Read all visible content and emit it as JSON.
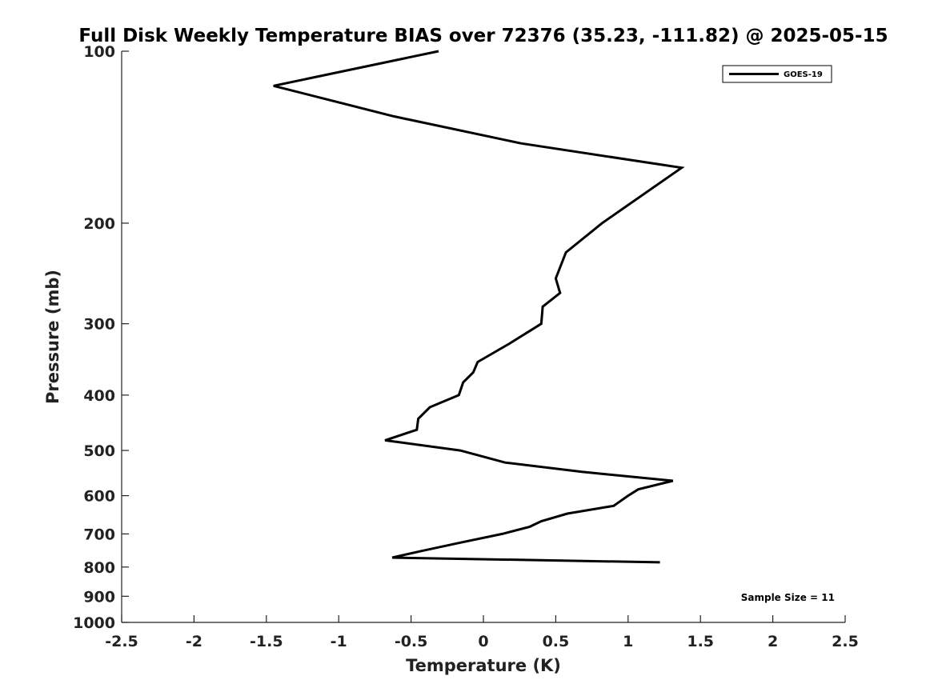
{
  "chart_data": {
    "type": "line",
    "title": "Full Disk Weekly Temperature BIAS over 72376 (35.23, -111.82) @ 2025-05-15",
    "xlabel": "Temperature (K)",
    "ylabel": "Pressure (mb)",
    "xlim": [
      -2.5,
      2.5
    ],
    "ylim": [
      100,
      1000
    ],
    "y_scale": "log",
    "y_reversed": true,
    "x_ticks": [
      -2.5,
      -2,
      -1.5,
      -1,
      -0.5,
      0,
      0.5,
      1,
      1.5,
      2,
      2.5
    ],
    "x_tick_labels": [
      "-2.5",
      "-2",
      "-1.5",
      "-1",
      "-0.5",
      "0",
      "0.5",
      "1",
      "1.5",
      "2",
      "2.5"
    ],
    "y_ticks": [
      100,
      200,
      300,
      400,
      500,
      600,
      700,
      800,
      900,
      1000
    ],
    "y_tick_labels": [
      "100",
      "200",
      "300",
      "400",
      "500",
      "600",
      "700",
      "800",
      "900",
      "1000"
    ],
    "grid": false,
    "legend_position": "top-right",
    "series": [
      {
        "name": "GOES-19",
        "color": "#000000",
        "points": [
          {
            "x": -0.31,
            "p": 100
          },
          {
            "x": -1.45,
            "p": 115
          },
          {
            "x": -0.62,
            "p": 130
          },
          {
            "x": 0.26,
            "p": 145
          },
          {
            "x": 1.37,
            "p": 160
          },
          {
            "x": 0.82,
            "p": 200
          },
          {
            "x": 0.57,
            "p": 225
          },
          {
            "x": 0.5,
            "p": 250
          },
          {
            "x": 0.53,
            "p": 265
          },
          {
            "x": 0.41,
            "p": 280
          },
          {
            "x": 0.4,
            "p": 300
          },
          {
            "x": 0.18,
            "p": 325
          },
          {
            "x": -0.04,
            "p": 350
          },
          {
            "x": -0.07,
            "p": 365
          },
          {
            "x": -0.14,
            "p": 380
          },
          {
            "x": -0.17,
            "p": 400
          },
          {
            "x": -0.37,
            "p": 420
          },
          {
            "x": -0.45,
            "p": 440
          },
          {
            "x": -0.46,
            "p": 460
          },
          {
            "x": -0.68,
            "p": 480
          },
          {
            "x": -0.16,
            "p": 500
          },
          {
            "x": 0.15,
            "p": 525
          },
          {
            "x": 0.68,
            "p": 545
          },
          {
            "x": 1.31,
            "p": 565
          },
          {
            "x": 1.07,
            "p": 585
          },
          {
            "x": 1.0,
            "p": 600
          },
          {
            "x": 0.9,
            "p": 625
          },
          {
            "x": 0.58,
            "p": 645
          },
          {
            "x": 0.4,
            "p": 665
          },
          {
            "x": 0.32,
            "p": 680
          },
          {
            "x": 0.13,
            "p": 700
          },
          {
            "x": -0.16,
            "p": 725
          },
          {
            "x": -0.43,
            "p": 750
          },
          {
            "x": -0.63,
            "p": 770
          },
          {
            "x": 1.22,
            "p": 785
          }
        ]
      }
    ],
    "annotations": [
      "Sample Size = 11"
    ]
  }
}
